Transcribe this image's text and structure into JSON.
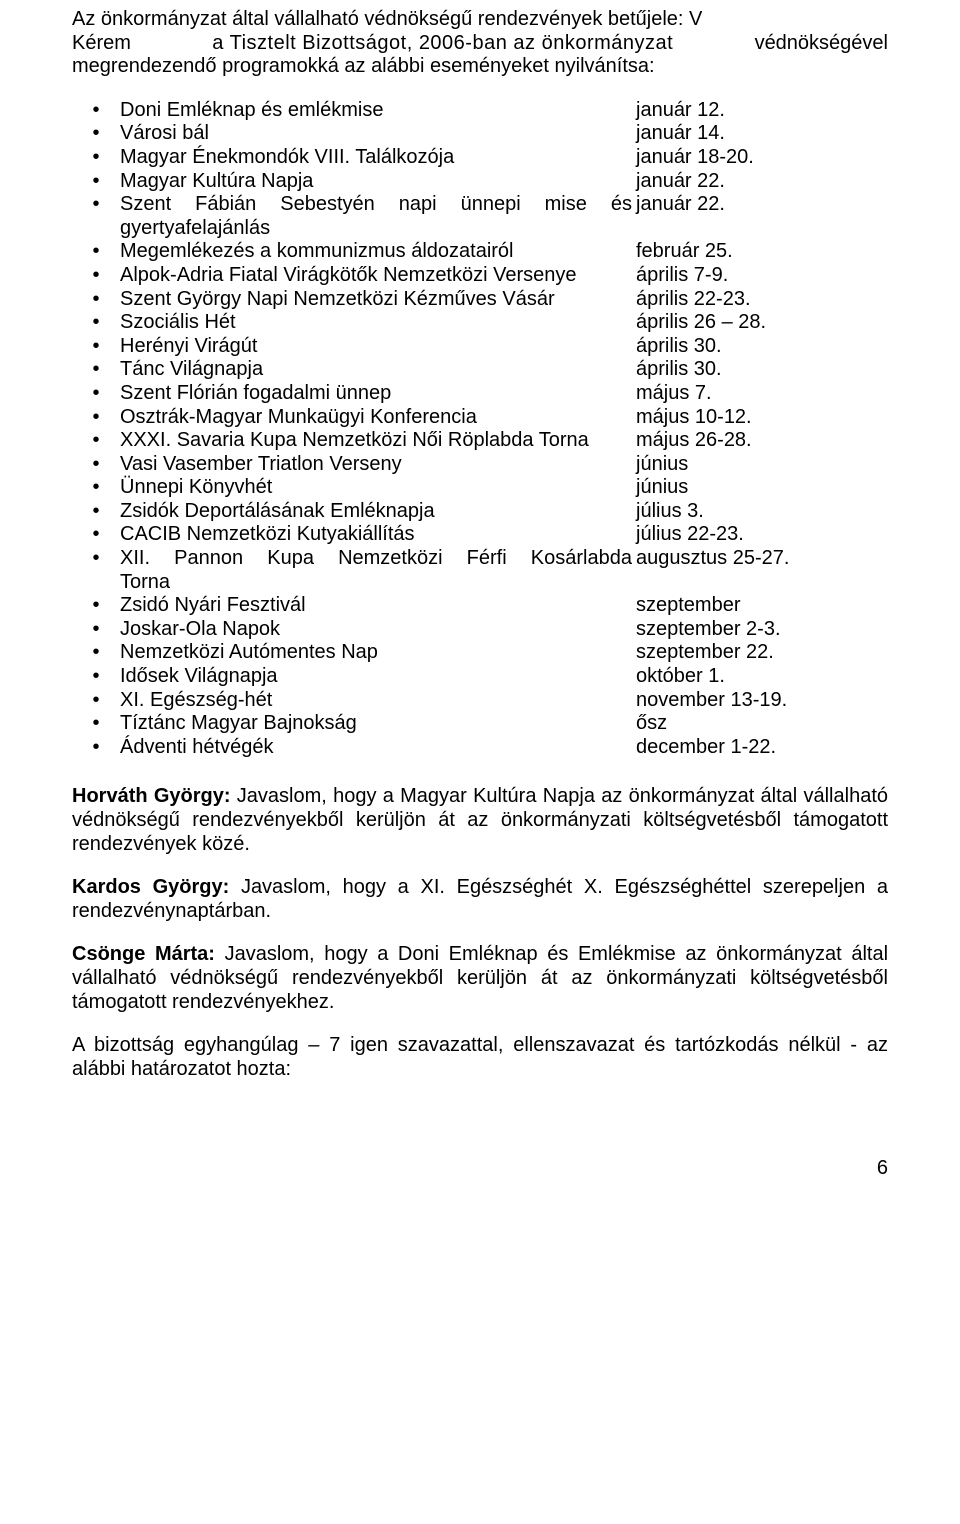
{
  "intro": {
    "line1": "Az önkormányzat által vállalható védnökségű rendezvények betűjele: V",
    "line2_left": "Kérem",
    "line2_mid": "a Tisztelt Bizottságot, 2006-ban az önkormányzat",
    "line2_right": "védnökségével",
    "line3": "megrendezendő programokká az alábbi eseményeket nyilvánítsa:"
  },
  "events": [
    {
      "label": "Doni Emléknap és emlékmise",
      "date": "január 12.",
      "justify": false,
      "cont": ""
    },
    {
      "label": "Városi bál",
      "date": "január 14.",
      "justify": false,
      "cont": ""
    },
    {
      "label": "Magyar Énekmondók VIII. Találkozója",
      "date": "január 18-20.",
      "justify": false,
      "cont": ""
    },
    {
      "label": "Magyar Kultúra Napja",
      "date": "január 22.",
      "justify": false,
      "cont": ""
    },
    {
      "label": "Szent Fábián Sebestyén napi ünnepi mise és",
      "date": "január 22.",
      "justify": true,
      "cont": "gyertyafelajánlás"
    },
    {
      "label": "Megemlékezés a kommunizmus áldozatairól",
      "date": "február 25.",
      "justify": false,
      "cont": ""
    },
    {
      "label": "Alpok-Adria Fiatal Virágkötők Nemzetközi Versenye",
      "date": "április 7-9.",
      "justify": false,
      "cont": ""
    },
    {
      "label": "Szent György Napi Nemzetközi Kézműves Vásár",
      "date": "április 22-23.",
      "justify": false,
      "cont": ""
    },
    {
      "label": "Szociális Hét",
      "date": "április 26 – 28.",
      "justify": false,
      "cont": ""
    },
    {
      "label": "Herényi Virágút",
      "date": "április 30.",
      "justify": false,
      "cont": ""
    },
    {
      "label": "Tánc Világnapja",
      "date": "április 30.",
      "justify": false,
      "cont": ""
    },
    {
      "label": "Szent Flórián fogadalmi ünnep",
      "date": "május 7.",
      "justify": false,
      "cont": ""
    },
    {
      "label": "Osztrák-Magyar Munkaügyi Konferencia",
      "date": "május 10-12.",
      "justify": false,
      "cont": ""
    },
    {
      "label": "XXXI. Savaria Kupa Nemzetközi Női Röplabda Torna",
      "date": "május 26-28.",
      "justify": false,
      "cont": ""
    },
    {
      "label": "Vasi Vasember Triatlon Verseny",
      "date": "június",
      "justify": false,
      "cont": ""
    },
    {
      "label": "Ünnepi Könyvhét",
      "date": "június",
      "justify": false,
      "cont": ""
    },
    {
      "label": "Zsidók Deportálásának Emléknapja",
      "date": "július 3.",
      "justify": false,
      "cont": ""
    },
    {
      "label": "CACIB Nemzetközi Kutyakiállítás",
      "date": "július 22-23.",
      "justify": false,
      "cont": ""
    },
    {
      "label": "XII. Pannon Kupa Nemzetközi Férfi Kosárlabda",
      "date": "augusztus 25-27.",
      "justify": true,
      "cont": "Torna"
    },
    {
      "label": "Zsidó Nyári Fesztivál",
      "date": "szeptember",
      "justify": false,
      "cont": ""
    },
    {
      "label": "Joskar-Ola Napok",
      "date": "szeptember 2-3.",
      "justify": false,
      "cont": ""
    },
    {
      "label": "Nemzetközi Autómentes Nap",
      "date": "szeptember 22.",
      "justify": false,
      "cont": ""
    },
    {
      "label": "Idősek Világnapja",
      "date": "október 1.",
      "justify": false,
      "cont": ""
    },
    {
      "label": "XI. Egészség-hét",
      "date": "november 13-19.",
      "justify": false,
      "cont": ""
    },
    {
      "label": "Tíztánc Magyar Bajnokság",
      "date": "ősz",
      "justify": false,
      "cont": ""
    },
    {
      "label": "Ádventi hétvégék",
      "date": "december 1-22.",
      "justify": false,
      "cont": ""
    }
  ],
  "comments": [
    {
      "speaker": "Horváth György:",
      "text": " Javaslom, hogy a Magyar Kultúra Napja az önkormányzat által vállalható védnökségű rendezvényekből kerüljön át az önkormányzati költségvetésből támogatott rendezvények közé."
    },
    {
      "speaker": "Kardos György:",
      "text": " Javaslom, hogy a XI. Egészséghét X. Egészséghéttel szerepeljen a rendezvénynaptárban."
    },
    {
      "speaker": "Csönge Márta:",
      "text": " Javaslom, hogy a Doni Emléknap és Emlékmise az önkormányzat által vállalható védnökségű rendezvényekből kerüljön át az önkormányzati költségvetésből támogatott rendezvényekhez."
    }
  ],
  "closing": "A bizottság egyhangúlag – 7 igen szavazattal, ellenszavazat és tartózkodás nélkül  - az alábbi határozatot hozta:",
  "pageNumber": "6"
}
